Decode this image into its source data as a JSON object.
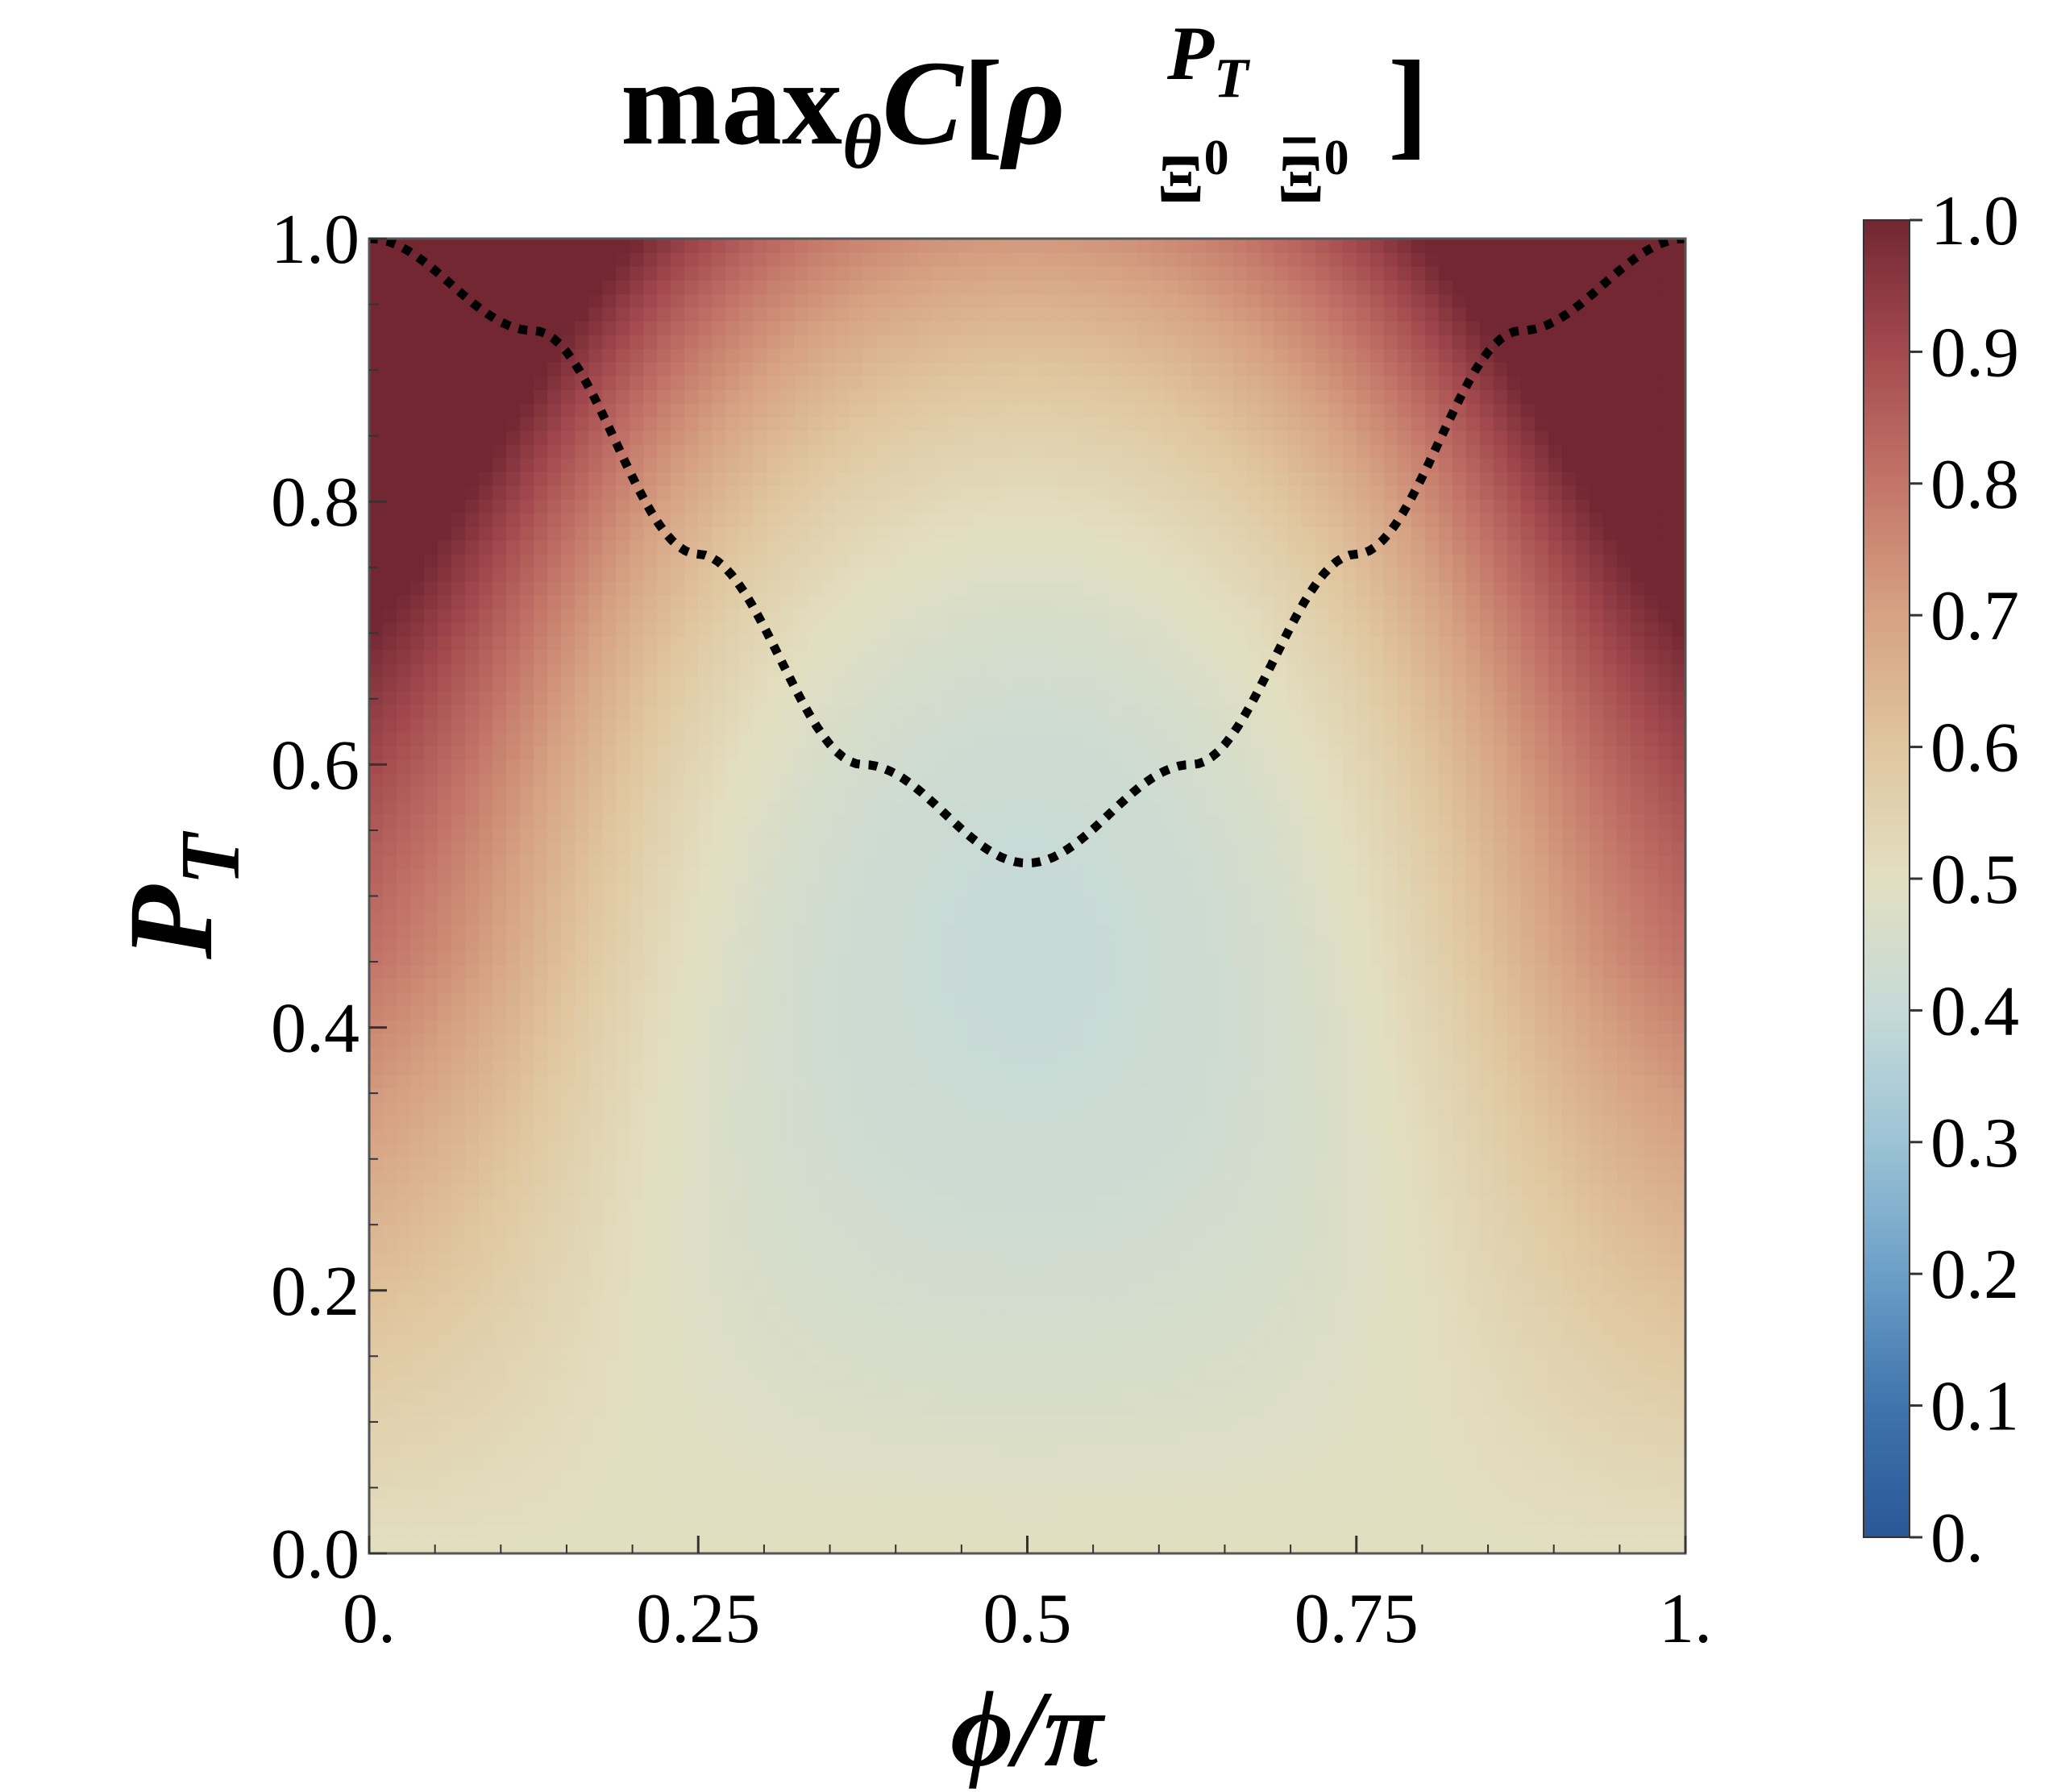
{
  "chart_data": {
    "type": "heatmap",
    "title": {
      "prefix": "max",
      "prefix_sub": "θ",
      "func": "C",
      "open": "[",
      "rho": "ρ",
      "rho_sup": "P",
      "rho_sup_sub": "T",
      "rho_sub1": "Ξ",
      "rho_sub1_sup": "0",
      "rho_sub2": "Ξ",
      "rho_sub2_sup": "0",
      "close": "]"
    },
    "xlabel": "ϕ/π",
    "ylabel": {
      "main": "P",
      "sub": "T"
    },
    "xlim": [
      0,
      1
    ],
    "ylim": [
      0,
      1
    ],
    "x_ticks": [
      {
        "value": 0,
        "label": "0."
      },
      {
        "value": 0.25,
        "label": "0.25"
      },
      {
        "value": 0.5,
        "label": "0.5"
      },
      {
        "value": 0.75,
        "label": "0.75"
      },
      {
        "value": 1,
        "label": "1."
      }
    ],
    "y_ticks": [
      {
        "value": 0.0,
        "label": "0.0"
      },
      {
        "value": 0.2,
        "label": "0.2"
      },
      {
        "value": 0.4,
        "label": "0.4"
      },
      {
        "value": 0.6,
        "label": "0.6"
      },
      {
        "value": 0.8,
        "label": "0.8"
      },
      {
        "value": 1.0,
        "label": "1.0"
      }
    ],
    "colorbar": {
      "range": [
        0,
        1
      ],
      "ticks": [
        {
          "value": 0,
          "label": "0."
        },
        {
          "value": 0.1,
          "label": "0.1"
        },
        {
          "value": 0.2,
          "label": "0.2"
        },
        {
          "value": 0.3,
          "label": "0.3"
        },
        {
          "value": 0.4,
          "label": "0.4"
        },
        {
          "value": 0.5,
          "label": "0.5"
        },
        {
          "value": 0.6,
          "label": "0.6"
        },
        {
          "value": 0.7,
          "label": "0.7"
        },
        {
          "value": 0.8,
          "label": "0.8"
        },
        {
          "value": 0.9,
          "label": "0.9"
        },
        {
          "value": 1.0,
          "label": "1.0"
        }
      ],
      "colormap": "RdBu_r",
      "color_stops": [
        {
          "value": 0.0,
          "color": "#2b5797"
        },
        {
          "value": 0.1,
          "color": "#3f74ad"
        },
        {
          "value": 0.2,
          "color": "#6c9fc7"
        },
        {
          "value": 0.3,
          "color": "#9cc3d6"
        },
        {
          "value": 0.4,
          "color": "#c6dad8"
        },
        {
          "value": 0.5,
          "color": "#e2dfc1"
        },
        {
          "value": 0.6,
          "color": "#e0c69f"
        },
        {
          "value": 0.7,
          "color": "#d6a283"
        },
        {
          "value": 0.8,
          "color": "#c37568"
        },
        {
          "value": 0.9,
          "color": "#a44a4f"
        },
        {
          "value": 1.0,
          "color": "#722733"
        }
      ]
    },
    "dotted_curve": {
      "description_points": [
        {
          "x": 0.0,
          "y": 1.0
        },
        {
          "x": 0.125,
          "y": 0.93
        },
        {
          "x": 0.25,
          "y": 0.76
        },
        {
          "x": 0.375,
          "y": 0.6
        },
        {
          "x": 0.5,
          "y": 0.525
        },
        {
          "x": 0.625,
          "y": 0.6
        },
        {
          "x": 0.75,
          "y": 0.76
        },
        {
          "x": 0.875,
          "y": 0.93
        },
        {
          "x": 1.0,
          "y": 1.0
        }
      ],
      "style": "dotted",
      "color": "#000000"
    },
    "grid": false,
    "legend": "none"
  }
}
